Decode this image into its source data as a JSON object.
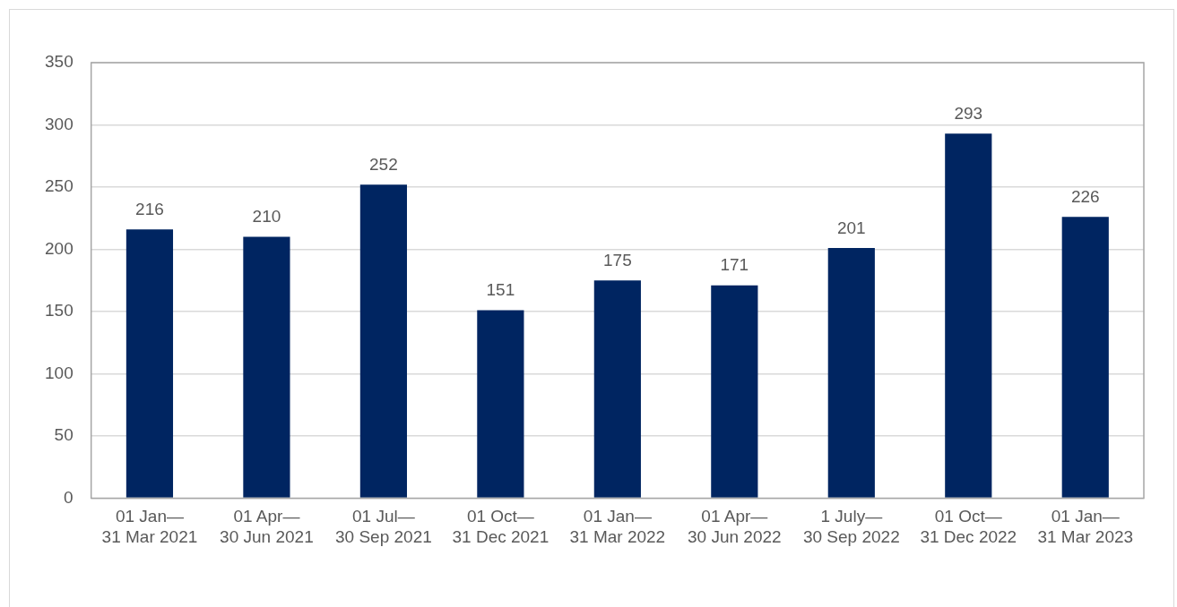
{
  "chart_data": {
    "type": "bar",
    "categories": [
      "01 Jan—\n31 Mar 2021",
      "01 Apr—\n30 Jun 2021",
      "01 Jul—\n30 Sep 2021",
      "01 Oct—\n31 Dec 2021",
      "01 Jan—\n31 Mar 2022",
      "01 Apr—\n30 Jun 2022",
      "1 July—\n30 Sep 2022",
      "01 Oct—\n31 Dec 2022",
      "01 Jan—\n31 Mar 2023"
    ],
    "values": [
      216,
      210,
      252,
      151,
      175,
      171,
      201,
      293,
      226
    ],
    "color": "#002561",
    "ylim": [
      0,
      350
    ],
    "yticks": [
      0,
      50,
      100,
      150,
      200,
      250,
      300,
      350
    ],
    "grid": "y",
    "data_labels": true,
    "legend": false
  }
}
